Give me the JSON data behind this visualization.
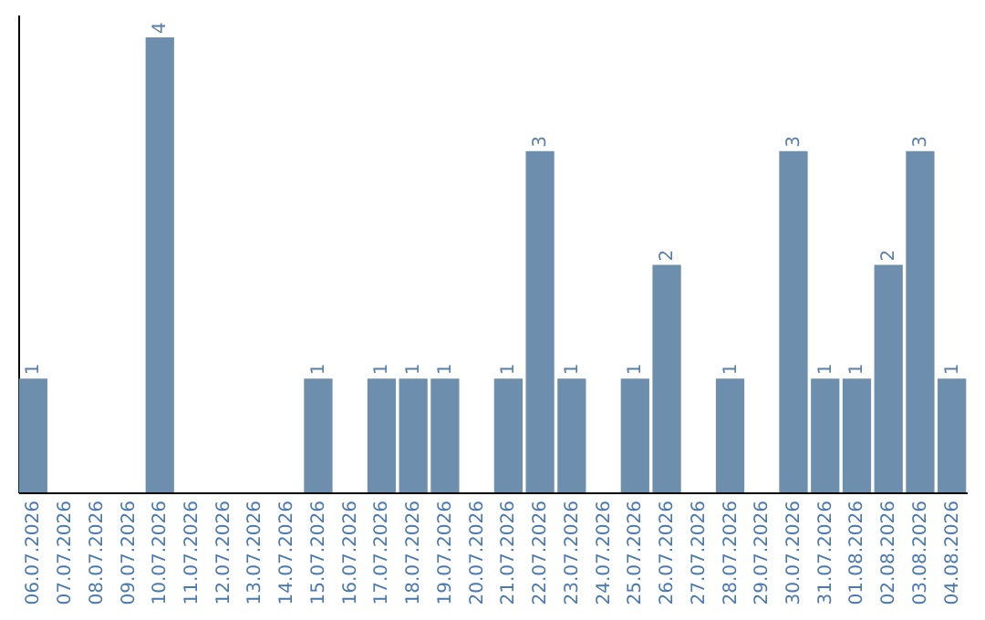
{
  "chart_data": {
    "type": "bar",
    "categories": [
      "06.07.2026",
      "07.07.2026",
      "08.07.2026",
      "09.07.2026",
      "10.07.2026",
      "11.07.2026",
      "12.07.2026",
      "13.07.2026",
      "14.07.2026",
      "15.07.2026",
      "16.07.2026",
      "17.07.2026",
      "18.07.2026",
      "19.07.2026",
      "20.07.2026",
      "21.07.2026",
      "22.07.2026",
      "23.07.2026",
      "24.07.2026",
      "25.07.2026",
      "26.07.2026",
      "27.07.2026",
      "28.07.2026",
      "29.07.2026",
      "30.07.2026",
      "31.07.2026",
      "01.08.2026",
      "02.08.2026",
      "03.08.2026",
      "04.08.2026"
    ],
    "values": [
      1,
      0,
      0,
      0,
      4,
      0,
      0,
      0,
      0,
      1,
      0,
      1,
      1,
      1,
      0,
      1,
      3,
      1,
      0,
      1,
      2,
      0,
      1,
      0,
      3,
      1,
      1,
      2,
      3,
      1
    ],
    "value_labels": [
      "1",
      null,
      null,
      null,
      "4",
      null,
      null,
      null,
      null,
      "1",
      null,
      "1",
      "1",
      "1",
      null,
      "1",
      "3",
      "1",
      null,
      "1",
      "2",
      null,
      "1",
      null,
      "3",
      "1",
      "1",
      "2",
      "3",
      "1"
    ],
    "color": "#6d8fad",
    "ylim": [
      0,
      4.2
    ],
    "tick_labels": "x",
    "grid": false
  }
}
